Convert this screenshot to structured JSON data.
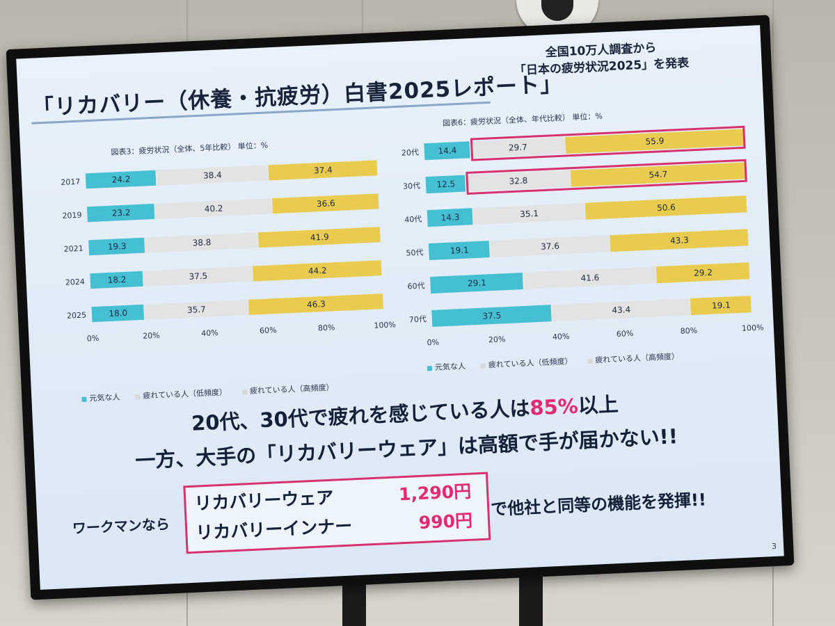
{
  "slide": {
    "title": "「リカバリー（休養・抗疲労）白書2025レポート」",
    "subhead": [
      "全国10万人調査から",
      "「日本の疲労状況2025」を発表"
    ],
    "message_line1_pre": "20代、30代で疲れを感じている人は",
    "message_line1_highlight": "85%",
    "message_line1_post": "以上",
    "message_line2": "一方、大手の「リカバリーウェア」は高額で手が届かない!!",
    "lead": "ワークマンなら",
    "prices": [
      {
        "item": "リカバリーウェア",
        "price": "1,290円"
      },
      {
        "item": "リカバリーインナー",
        "price": "990円"
      }
    ],
    "trail": "で他社と同等の機能を発揮!!",
    "page_number": "3"
  },
  "colors": {
    "series1": "#45bfd2",
    "series2": "#e3e3e3",
    "series3": "#e9cb4f",
    "highlight": "#e02a72",
    "box_border": "#d8326e"
  },
  "legend_items": [
    "元気な人",
    "疲れている人（低頻度）",
    "疲れている人（高頻度）"
  ],
  "chart_data": [
    {
      "type": "bar",
      "orientation": "horizontal",
      "stacked": true,
      "title": "図表3：疲労状況（全体、5年比較） 単位：%",
      "categories": [
        "2017",
        "2019",
        "2021",
        "2024",
        "2025"
      ],
      "series": [
        {
          "name": "元気な人",
          "values": [
            24.2,
            23.2,
            19.3,
            18.2,
            18.0
          ]
        },
        {
          "name": "疲れている人（低頻度）",
          "values": [
            38.4,
            40.2,
            38.8,
            37.5,
            35.7
          ]
        },
        {
          "name": "疲れている人（高頻度）",
          "values": [
            37.4,
            36.6,
            41.9,
            44.2,
            46.3
          ]
        }
      ],
      "xticks": [
        "0%",
        "20%",
        "40%",
        "60%",
        "80%",
        "100%"
      ],
      "xlim": [
        0,
        100
      ],
      "legend_position": "bottom"
    },
    {
      "type": "bar",
      "orientation": "horizontal",
      "stacked": true,
      "title": "図表6：疲労状況（全体、年代比較） 単位：%",
      "categories": [
        "20代",
        "30代",
        "40代",
        "50代",
        "60代",
        "70代"
      ],
      "series": [
        {
          "name": "元気な人",
          "values": [
            14.4,
            12.5,
            14.3,
            19.1,
            29.1,
            37.5
          ]
        },
        {
          "name": "疲れている人（低頻度）",
          "values": [
            29.7,
            32.8,
            35.1,
            37.6,
            41.6,
            43.4
          ]
        },
        {
          "name": "疲れている人（高頻度）",
          "values": [
            55.9,
            54.7,
            50.6,
            43.3,
            29.2,
            19.1
          ]
        }
      ],
      "highlighted_categories": [
        "20代",
        "30代"
      ],
      "xticks": [
        "0%",
        "20%",
        "40%",
        "60%",
        "80%",
        "100%"
      ],
      "xlim": [
        0,
        100
      ],
      "legend_position": "bottom"
    }
  ]
}
